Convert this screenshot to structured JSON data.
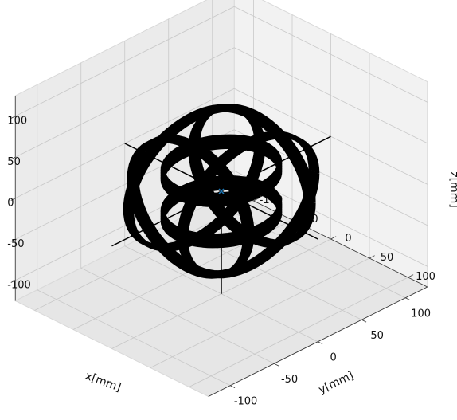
{
  "chart_data": {
    "type": "scatter",
    "projection": "3d",
    "xlabel": "x[mm]",
    "ylabel": "y[mm]",
    "zlabel": "z[mm]",
    "xlim": [
      -125,
      125
    ],
    "ylim": [
      -125,
      125
    ],
    "zlim": [
      -125,
      125
    ],
    "xticks": [
      -100,
      -50,
      0,
      50,
      100
    ],
    "yticks": [
      -100,
      -50,
      0,
      50,
      100
    ],
    "zticks": [
      -100,
      -50,
      0,
      50,
      100
    ],
    "grid": true,
    "coil_pairs": [
      {
        "axis": "z",
        "radius": 50,
        "offsets": [
          -25,
          25
        ],
        "color": "#000000"
      },
      {
        "axis": "x",
        "radius": 75,
        "offsets": [
          -35,
          35
        ],
        "color": "#000000"
      },
      {
        "axis": "y",
        "radius": 75,
        "offsets": [
          -35,
          35
        ],
        "color": "#000000"
      }
    ],
    "lines": [
      {
        "from": [
          0,
          -125,
          0
        ],
        "to": [
          0,
          125,
          0
        ],
        "color": "#000000"
      },
      {
        "from": [
          -125,
          0,
          0
        ],
        "to": [
          125,
          0,
          0
        ],
        "color": "#000000"
      },
      {
        "from": [
          0,
          0,
          0
        ],
        "to": [
          0,
          0,
          -125
        ],
        "color": "#000000"
      }
    ],
    "points": [
      {
        "x": 0,
        "y": 0,
        "z": 0,
        "marker": "x",
        "color": "#1f77b4"
      }
    ]
  }
}
